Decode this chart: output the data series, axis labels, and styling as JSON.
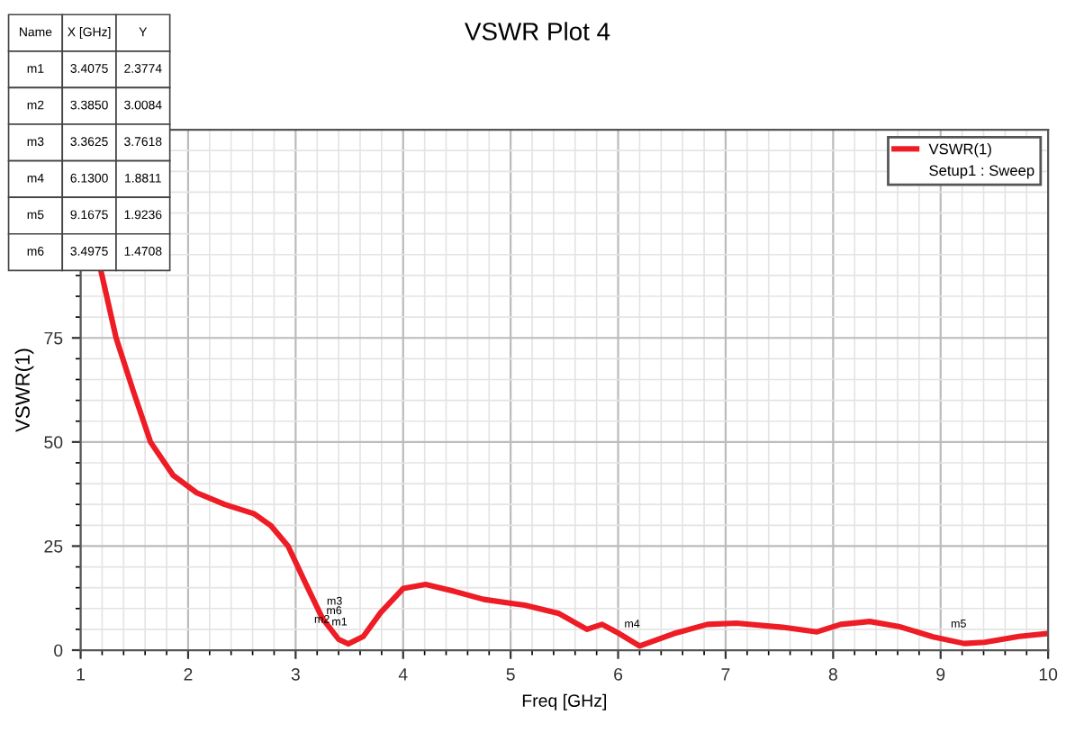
{
  "chart_data": {
    "type": "line",
    "title": "VSWR Plot 4",
    "xlabel": "Freq [GHz]",
    "ylabel": "VSWR(1)",
    "xlim": [
      1,
      10
    ],
    "xticks": [
      1,
      2,
      3,
      4,
      5,
      6,
      7,
      8,
      9,
      10
    ],
    "ylim": [
      0,
      125
    ],
    "yticks": [
      0,
      25,
      50,
      75
    ],
    "grid": true,
    "legend": "top right",
    "marker": "none",
    "line_style": "solid",
    "series": [
      {
        "name": "VSWR(1)",
        "color": "#ee1c25",
        "x": [
          1.19,
          1.33,
          1.49,
          1.65,
          1.86,
          2.08,
          2.34,
          2.61,
          2.77,
          2.93,
          3.09,
          3.25,
          3.4,
          3.49,
          3.63,
          3.79,
          4.0,
          4.21,
          4.48,
          4.75,
          5.02,
          5.13,
          5.45,
          5.71,
          5.85,
          6.01,
          6.2,
          6.52,
          6.83,
          7.1,
          7.53,
          7.85,
          8.07,
          8.34,
          8.61,
          8.93,
          9.22,
          9.41,
          9.73,
          10.0
        ],
        "values": [
          91,
          75,
          62.2,
          50,
          42,
          37.8,
          35,
          32.8,
          29.9,
          25,
          16.2,
          7.6,
          2.6,
          1.5,
          3.3,
          9,
          14.8,
          15.8,
          14.1,
          12.2,
          11.2,
          10.8,
          8.8,
          5.0,
          6.2,
          4.0,
          1.0,
          4.0,
          6.2,
          6.5,
          5.5,
          4.4,
          6.2,
          6.9,
          5.7,
          3.2,
          1.6,
          1.9,
          3.3,
          4.0
        ]
      }
    ],
    "annotations": [
      "Setup1 : Sweep",
      "Name",
      "X [GHz]",
      "Y",
      "m1",
      "3.4075",
      "2.3774",
      "m2",
      "3.3850",
      "3.0084",
      "m3",
      "3.3625",
      "3.7618",
      "m4",
      "6.1300",
      "1.8811",
      "m5",
      "9.1675",
      "1.9236",
      "m6",
      "3.4975",
      "1.4708",
      {
        "text": "m1",
        "x": 3.4075,
        "y": 2.3774
      },
      {
        "text": "m2",
        "x": 3.385,
        "y": 3.0084
      },
      {
        "text": "m3",
        "x": 3.3625,
        "y": 3.7618
      },
      {
        "text": "m4",
        "x": 6.13,
        "y": 1.8811
      },
      {
        "text": "m5",
        "x": 9.1675,
        "y": 1.9236
      },
      {
        "text": "m6",
        "x": 3.4975,
        "y": 1.4708
      }
    ]
  }
}
